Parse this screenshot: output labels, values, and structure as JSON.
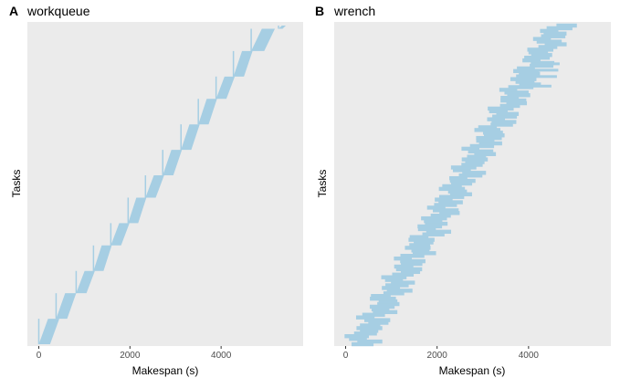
{
  "chart_data": [
    {
      "type": "gantt",
      "panel_letter": "A",
      "title": "workqueue",
      "xlabel": "Makespan (s)",
      "ylabel": "Tasks",
      "xlim": [
        -250,
        5800
      ],
      "xticks": [
        0,
        2000,
        4000
      ],
      "xtick_labels": [
        "0",
        "2000",
        "4000"
      ],
      "y_ticks_shown": false,
      "grid": false,
      "bar_color": "#a6cee3",
      "background": "#ebebeb",
      "series": [
        {
          "name": "",
          "segments": [
            {
              "start": 0,
              "end": 450,
              "task_from": 0.0,
              "task_to": 0.08,
              "offset_start": 0
            },
            {
              "start": 380,
              "end": 820,
              "task_from": 0.08,
              "task_to": 0.16,
              "offset_start": 0
            },
            {
              "start": 820,
              "end": 1230,
              "task_from": 0.16,
              "task_to": 0.23,
              "offset_start": 0
            },
            {
              "start": 1200,
              "end": 1600,
              "task_from": 0.23,
              "task_to": 0.31,
              "offset_start": 0
            },
            {
              "start": 1580,
              "end": 1990,
              "task_from": 0.31,
              "task_to": 0.38,
              "offset_start": 0
            },
            {
              "start": 1960,
              "end": 2360,
              "task_from": 0.38,
              "task_to": 0.46,
              "offset_start": 0
            },
            {
              "start": 2340,
              "end": 2750,
              "task_from": 0.46,
              "task_to": 0.53,
              "offset_start": 0
            },
            {
              "start": 2720,
              "end": 3140,
              "task_from": 0.53,
              "task_to": 0.61,
              "offset_start": 0
            },
            {
              "start": 3120,
              "end": 3530,
              "task_from": 0.61,
              "task_to": 0.69,
              "offset_start": 0
            },
            {
              "start": 3500,
              "end": 3910,
              "task_from": 0.69,
              "task_to": 0.77,
              "offset_start": 0
            },
            {
              "start": 3890,
              "end": 4300,
              "task_from": 0.77,
              "task_to": 0.84,
              "offset_start": 0
            },
            {
              "start": 4270,
              "end": 4690,
              "task_from": 0.84,
              "task_to": 0.92,
              "offset_start": 0
            },
            {
              "start": 4660,
              "end": 5180,
              "task_from": 0.92,
              "task_to": 0.99,
              "offset_start": 0
            },
            {
              "start": 5260,
              "end": 5420,
              "task_from": 0.99,
              "task_to": 1.0,
              "offset_start": 0
            }
          ]
        }
      ]
    },
    {
      "type": "gantt",
      "panel_letter": "B",
      "title": "wrench",
      "xlabel": "Makespan (s)",
      "ylabel": "Tasks",
      "xlim": [
        -250,
        5800
      ],
      "xticks": [
        0,
        2000,
        4000
      ],
      "xtick_labels": [
        "0",
        "2000",
        "4000"
      ],
      "y_ticks_shown": false,
      "grid": false,
      "bar_color": "#a6cee3",
      "background": "#ebebeb",
      "band": {
        "task_from": 0.0,
        "task_to": 1.0,
        "start_at_bottom": 50,
        "start_at_top": 4420,
        "duration": 480
      }
    }
  ]
}
